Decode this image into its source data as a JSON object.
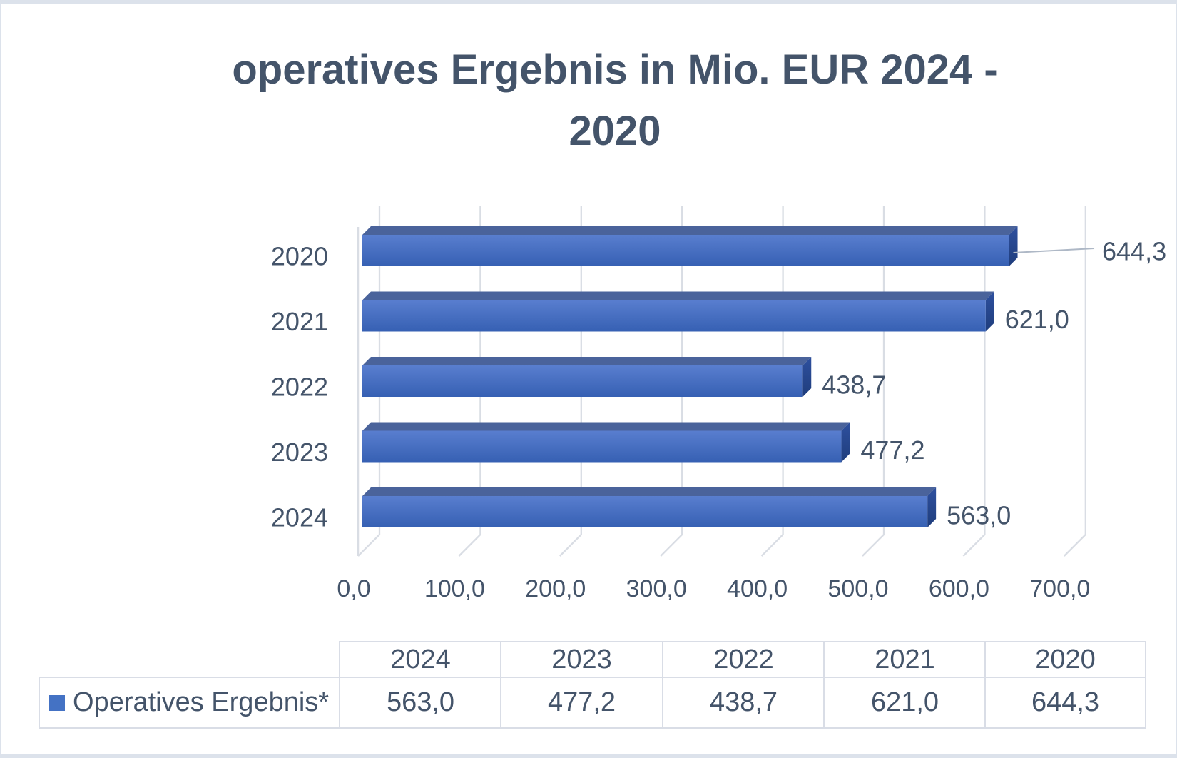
{
  "chart_data": {
    "type": "bar",
    "orientation": "horizontal",
    "style": "3d",
    "title": "operatives Ergebnis in Mio. EUR 2024 - 2020",
    "title_lines": [
      "operatives Ergebnis in Mio. EUR 2024 -",
      "2020"
    ],
    "categories": [
      "2020",
      "2021",
      "2022",
      "2023",
      "2024"
    ],
    "values": [
      644.3,
      621.0,
      438.7,
      477.2,
      563.0
    ],
    "value_labels": [
      "644,3",
      "621,0",
      "438,7",
      "477,2",
      "563,0"
    ],
    "series": [
      {
        "name": "Operatives Ergebnis*",
        "values": [
          644.3,
          621.0,
          438.7,
          477.2,
          563.0
        ]
      }
    ],
    "x_tick_labels": [
      "0,0",
      "100,0",
      "200,0",
      "300,0",
      "400,0",
      "500,0",
      "600,0",
      "700,0"
    ],
    "x_tick_step": 100,
    "xlim": [
      0,
      700
    ],
    "grid": true,
    "legend_position": "data-table-bottom",
    "annotations": [
      {
        "target": "2020",
        "label": "644,3",
        "leader_line": true
      }
    ],
    "colors": {
      "bar_base": "#4472C4",
      "bar_front_top": "#597ECF",
      "bar_front_bottom": "#3660B3",
      "bar_top_face": "#4A639B",
      "bar_side_top": "#2E509F",
      "bar_side_bottom": "#1F3D7C",
      "text": "#44546A",
      "gridline": "#D9DDE4",
      "leader_line": "#AEB8C6"
    }
  },
  "table": {
    "headers": [
      "2024",
      "2023",
      "2022",
      "2021",
      "2020"
    ],
    "row_label": "Operatives Ergebnis*",
    "values": [
      "563,0",
      "477,2",
      "438,7",
      "621,0",
      "644,3"
    ],
    "legend_color": "#4472C4"
  }
}
